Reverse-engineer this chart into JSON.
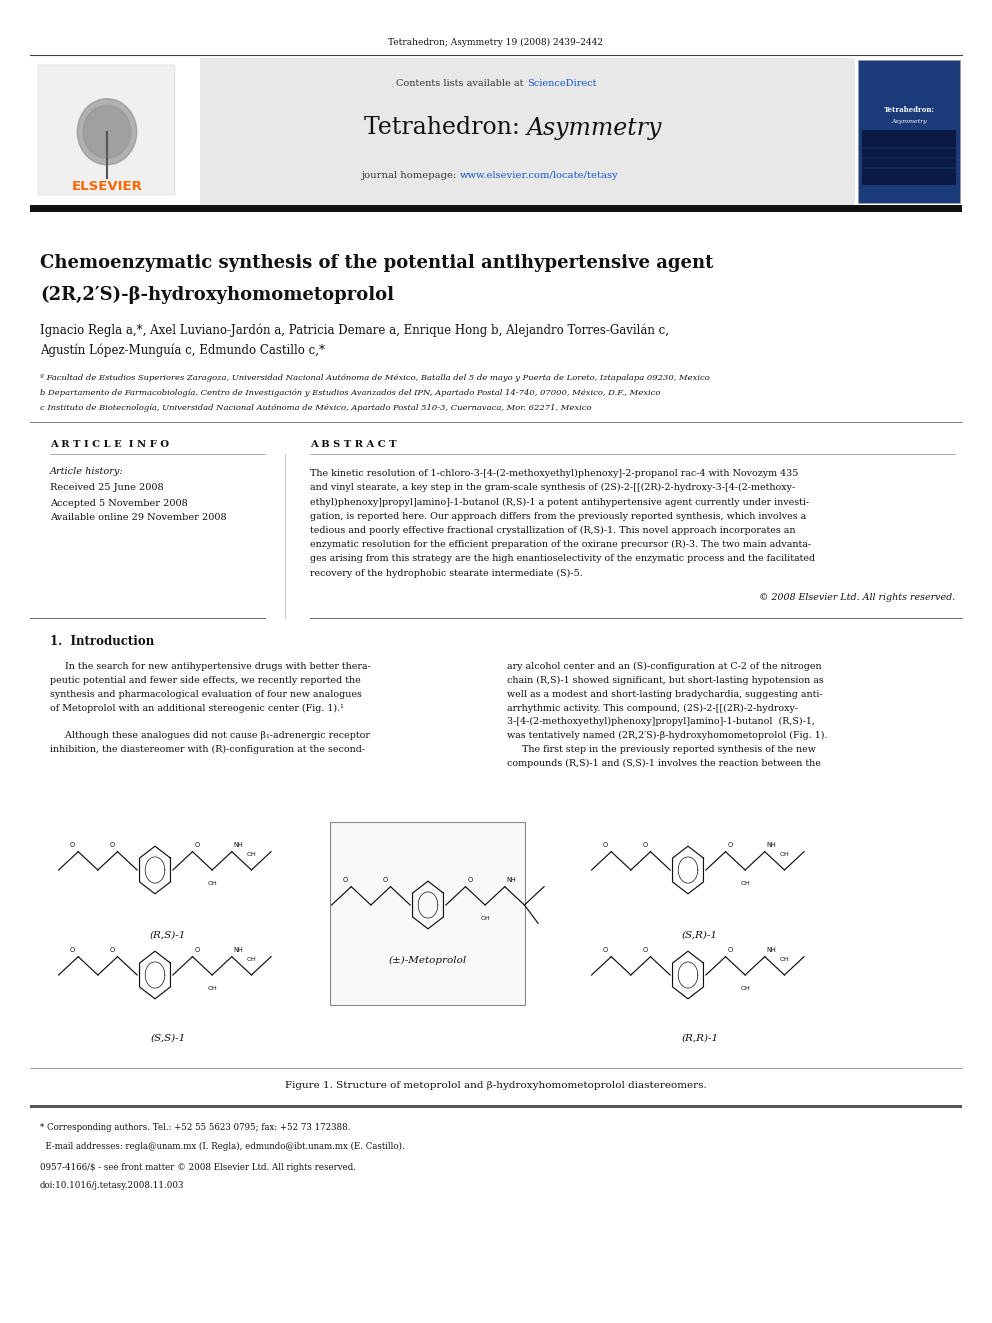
{
  "page_width": 9.92,
  "page_height": 13.23,
  "bg_color": "#ffffff",
  "top_journal_line": "Tetrahedron; Asymmetry 19 (2008) 2439–2442",
  "header_bg": "#e8e8e8",
  "sciencedirect_color": "#1155cc",
  "header_url_color": "#1155cc",
  "thick_bar_color": "#1a1a1a",
  "article_title_line1": "Chemoenzymatic synthesis of the potential antihypertensive agent",
  "article_title_line2": "(2R,2′S)-β-hydroxyhomometoprolol",
  "authors": "Ignacio Regla a,*, Axel Luviano-Jardón a, Patricia Demare a, Enrique Hong b, Alejandro Torres-Gavilán c,",
  "authors2": "Agustín López-Munguía c, Edmundo Castillo c,*",
  "affil_a": "ª Facultad de Estudios Superiores Zaragoza, Universidad Nacional Autónoma de México, Batalla del 5 de mayo y Puerta de Loreto, Iztapalapa 09230, Mexico",
  "affil_b": "b Departamento de Farmacobiología, Centro de Investigación y Estudios Avanzados del IPN, Apartado Postal 14-740, 07000, México, D.F., Mexico",
  "affil_c": "c Instituto de Biotecnología, Universidad Nacional Autónoma de México, Apartado Postal 510-3, Cuernavaca, Mor. 62271, Mexico",
  "article_info_label": "A R T I C L E  I N F O",
  "abstract_label": "A B S T R A C T",
  "article_history_label": "Article history:",
  "received": "Received 25 June 2008",
  "accepted": "Accepted 5 November 2008",
  "available": "Available online 29 November 2008",
  "copyright": "© 2008 Elsevier Ltd. All rights reserved.",
  "fig1_caption": "Figure 1. Structure of metoprolol and β-hydroxyhomometoprolol diastereomers.",
  "footnote_corresponding": "* Corresponding authors. Tel.: +52 55 5623 0795; fax: +52 73 172388.",
  "footnote_email": "  E-mail addresses: regla@unam.mx (I. Regla), edmundo@ibt.unam.mx (E. Castillo).",
  "footnote_issn": "0957-4166/$ - see front matter © 2008 Elsevier Ltd. All rights reserved.",
  "footnote_doi": "doi:10.1016/j.tetasy.2008.11.003",
  "elsevier_color": "#ff6600",
  "fig1_label_rs1": "(R,S)-1",
  "fig1_label_sr1": "(S,R)-1",
  "fig1_label_ss1": "(S,S)-1",
  "fig1_label_rr1": "(R,R)-1",
  "fig1_label_metoprolol": "(±)-Metoprolol",
  "abstract_lines": [
    "The kinetic resolution of 1-chloro-3-[4-(2-methoxyethyl)phenoxy]-2-propanol rac-4 with Novozym 435",
    "and vinyl stearate, a key step in the gram-scale synthesis of (2S)-2-[[(2R)-2-hydroxy-3-[4-(2-methoxy-",
    "ethyl)phenoxy]propyl]amino]-1-butanol (R,S)-1 a potent antihypertensive agent currently under investi-",
    "gation, is reported here. Our approach differs from the previously reported synthesis, which involves a",
    "tedious and poorly effective fractional crystallization of (R,S)-1. This novel approach incorporates an",
    "enzymatic resolution for the efficient preparation of the oxirane precursor (R)-3. The two main advanta-",
    "ges arising from this strategy are the high enantioselectivity of the enzymatic process and the facilitated",
    "recovery of the hydrophobic stearate intermediate (S)-5."
  ],
  "intro_left_lines": [
    "     In the search for new antihypertensive drugs with better thera-",
    "peutic potential and fewer side effects, we recently reported the",
    "synthesis and pharmacological evaluation of four new analogues",
    "of Metoprolol with an additional stereogenic center (Fig. 1).¹",
    "",
    "     Although these analogues did not cause β₁-adrenergic receptor",
    "inhibition, the diastereomer with (R)-configuration at the second-"
  ],
  "intro_right_lines": [
    "ary alcohol center and an (S)-configuration at C-2 of the nitrogen",
    "chain (R,S)-1 showed significant, but short-lasting hypotension as",
    "well as a modest and short-lasting bradychardia, suggesting anti-",
    "arrhythmic activity. This compound, (2S)-2-[[(2R)-2-hydroxy-",
    "3-[4-(2-methoxyethyl)phenoxy]propyl]amino]-1-butanol  (R,S)-1,",
    "was tentatively named (2R,2′S)-β-hydroxyhomometoprolol (Fig. 1).",
    "     The first step in the previously reported synthesis of the new",
    "compounds (R,S)-1 and (S,S)-1 involves the reaction between the"
  ]
}
